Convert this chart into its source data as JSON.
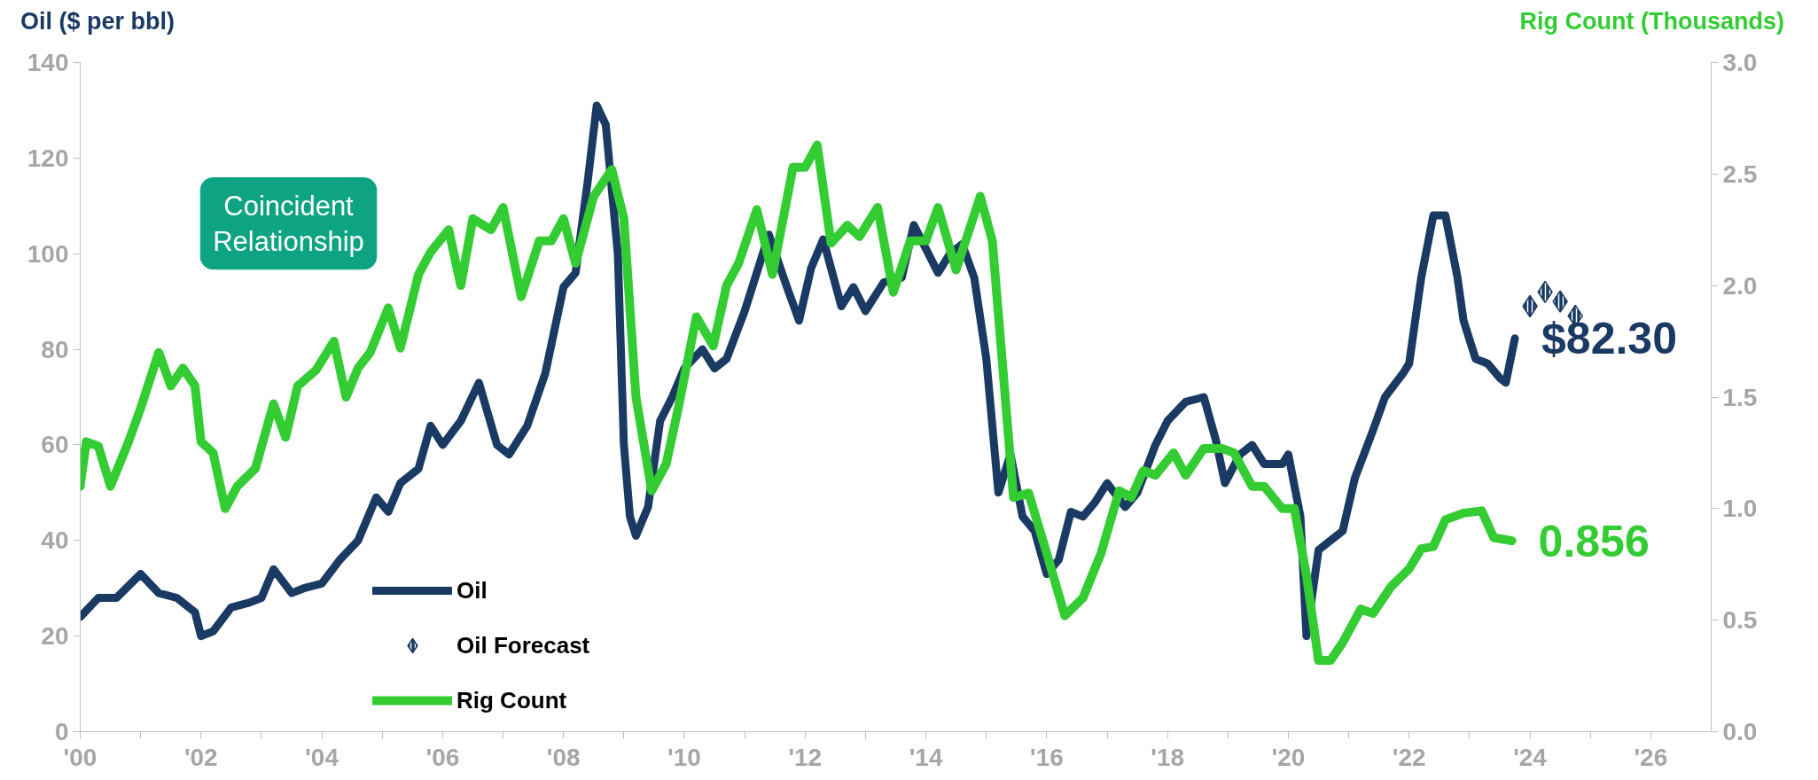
{
  "chart_data": {
    "type": "line",
    "xlabel": null,
    "ylabel": "Oil ($ per bbl)",
    "y2label": "Rig Count (Thousands)",
    "annotations": [
      "Coincident Relationship"
    ],
    "xlim": [
      2000,
      2027
    ],
    "xticks": [
      {
        "value": 2000,
        "label": "'00"
      },
      {
        "value": 2001,
        "label": null
      },
      {
        "value": 2002,
        "label": "'02"
      },
      {
        "value": 2003,
        "label": null
      },
      {
        "value": 2004,
        "label": "'04"
      },
      {
        "value": 2005,
        "label": null
      },
      {
        "value": 2006,
        "label": "'06"
      },
      {
        "value": 2007,
        "label": null
      },
      {
        "value": 2008,
        "label": "'08"
      },
      {
        "value": 2009,
        "label": null
      },
      {
        "value": 2010,
        "label": "'10"
      },
      {
        "value": 2011,
        "label": null
      },
      {
        "value": 2012,
        "label": "'12"
      },
      {
        "value": 2013,
        "label": null
      },
      {
        "value": 2014,
        "label": "'14"
      },
      {
        "value": 2015,
        "label": null
      },
      {
        "value": 2016,
        "label": "'16"
      },
      {
        "value": 2017,
        "label": null
      },
      {
        "value": 2018,
        "label": "'18"
      },
      {
        "value": 2019,
        "label": null
      },
      {
        "value": 2020,
        "label": "'20"
      },
      {
        "value": 2021,
        "label": null
      },
      {
        "value": 2022,
        "label": "'22"
      },
      {
        "value": 2023,
        "label": null
      },
      {
        "value": 2024,
        "label": "'24"
      },
      {
        "value": 2025,
        "label": null
      },
      {
        "value": 2026,
        "label": "'26"
      }
    ],
    "ylim": [
      0,
      140
    ],
    "yticks": [
      0,
      20,
      40,
      60,
      80,
      100,
      120,
      140
    ],
    "y2lim": [
      0,
      3
    ],
    "y2ticks": [
      {
        "value": 0,
        "label": "0.0"
      },
      {
        "value": 0.5,
        "label": "0.5"
      },
      {
        "value": 1,
        "label": "1.0"
      },
      {
        "value": 1.5,
        "label": "1.5"
      },
      {
        "value": 2,
        "label": "2.0"
      },
      {
        "value": 2.5,
        "label": "2.5"
      },
      {
        "value": 3,
        "label": "3.0"
      }
    ],
    "grid": false,
    "legend": "bottom left",
    "series": [
      {
        "name": "Oil",
        "color": "#1b3a63",
        "x": [
          2000.0,
          2000.3,
          2000.6,
          2001.0,
          2001.3,
          2001.6,
          2001.9,
          2002.0,
          2002.2,
          2002.5,
          2002.8,
          2003.0,
          2003.2,
          2003.5,
          2003.7,
          2004.0,
          2004.3,
          2004.6,
          2004.9,
          2005.1,
          2005.3,
          2005.6,
          2005.8,
          2006.0,
          2006.3,
          2006.6,
          2006.9,
          2007.1,
          2007.4,
          2007.7,
          2008.0,
          2008.2,
          2008.4,
          2008.55,
          2008.7,
          2008.9,
          2009.0,
          2009.1,
          2009.2,
          2009.4,
          2009.6,
          2009.8,
          2010.0,
          2010.3,
          2010.5,
          2010.7,
          2011.0,
          2011.2,
          2011.4,
          2011.7,
          2011.9,
          2012.1,
          2012.3,
          2012.6,
          2012.8,
          2013.0,
          2013.3,
          2013.6,
          2013.8,
          2014.0,
          2014.2,
          2014.4,
          2014.6,
          2014.8,
          2015.0,
          2015.2,
          2015.4,
          2015.6,
          2015.8,
          2016.0,
          2016.2,
          2016.4,
          2016.6,
          2016.8,
          2017.0,
          2017.3,
          2017.5,
          2017.8,
          2018.0,
          2018.3,
          2018.6,
          2018.8,
          2018.95,
          2019.2,
          2019.4,
          2019.6,
          2019.9,
          2020.0,
          2020.2,
          2020.3,
          2020.5,
          2020.7,
          2020.9,
          2021.1,
          2021.4,
          2021.6,
          2021.9,
          2022.0,
          2022.2,
          2022.4,
          2022.6,
          2022.8,
          2022.9,
          2023.1,
          2023.3,
          2023.5,
          2023.6,
          2023.75
        ],
        "values": [
          24,
          28,
          28,
          33,
          29,
          28,
          25,
          20,
          21,
          26,
          27,
          28,
          34,
          29,
          30,
          31,
          36,
          40,
          49,
          46,
          52,
          55,
          64,
          60,
          65,
          73,
          60,
          58,
          64,
          75,
          93,
          96,
          115,
          131,
          127,
          100,
          60,
          45,
          41,
          47,
          65,
          70,
          76,
          80,
          76,
          78,
          88,
          96,
          104,
          93,
          86,
          97,
          103,
          89,
          93,
          88,
          94,
          95,
          106,
          101,
          96,
          100,
          102,
          95,
          78,
          50,
          58,
          45,
          42,
          33,
          36,
          46,
          45,
          48,
          52,
          47,
          50,
          60,
          65,
          69,
          70,
          61,
          52,
          58,
          60,
          56,
          56,
          58,
          45,
          20,
          38,
          40,
          42,
          53,
          63,
          70,
          75,
          77,
          95,
          108,
          108,
          95,
          86,
          78,
          77,
          74,
          73,
          82.3
        ],
        "value_labels": [
          null,
          null,
          null,
          null,
          null,
          null,
          null,
          null,
          null,
          null,
          null,
          null,
          null,
          null,
          null,
          null,
          null,
          null,
          null,
          null,
          null,
          null,
          null,
          null,
          null,
          null,
          null,
          null,
          null,
          null,
          null,
          null,
          null,
          null,
          null,
          null,
          null,
          null,
          null,
          null,
          null,
          null,
          null,
          null,
          null,
          null,
          null,
          null,
          null,
          null,
          null,
          null,
          null,
          null,
          null,
          null,
          null,
          null,
          null,
          null,
          null,
          null,
          null,
          null,
          null,
          null,
          null,
          null,
          null,
          null,
          null,
          null,
          null,
          null,
          null,
          null,
          null,
          null,
          null,
          null,
          null,
          null,
          null,
          null,
          null,
          null,
          null,
          null,
          null,
          null,
          null,
          null,
          null,
          null,
          null,
          null,
          null,
          null,
          null,
          null,
          null,
          null,
          null,
          null,
          null,
          null,
          null,
          "$82.30"
        ]
      },
      {
        "name": "Oil Forecast",
        "type": "scatter",
        "marker": "diamond",
        "color": "#1b3a63",
        "x": [
          2024.0,
          2024.25,
          2024.5,
          2024.75
        ],
        "values": [
          89,
          92,
          90,
          87
        ]
      },
      {
        "name": "Rig Count",
        "axis": "y2",
        "color": "#33cc33",
        "x": [
          2000.0,
          2000.1,
          2000.3,
          2000.5,
          2000.8,
          2001.0,
          2001.3,
          2001.5,
          2001.7,
          2001.9,
          2002.0,
          2002.2,
          2002.4,
          2002.6,
          2002.9,
          2003.2,
          2003.4,
          2003.6,
          2003.9,
          2004.2,
          2004.4,
          2004.6,
          2004.8,
          2005.1,
          2005.3,
          2005.6,
          2005.8,
          2006.1,
          2006.3,
          2006.5,
          2006.8,
          2007.0,
          2007.3,
          2007.6,
          2007.8,
          2008.0,
          2008.2,
          2008.5,
          2008.8,
          2009.0,
          2009.2,
          2009.46,
          2009.7,
          2009.9,
          2010.2,
          2010.48,
          2010.7,
          2010.9,
          2011.2,
          2011.46,
          2011.8,
          2012.0,
          2012.2,
          2012.43,
          2012.7,
          2012.9,
          2013.2,
          2013.46,
          2013.74,
          2014.0,
          2014.2,
          2014.5,
          2014.9,
          2015.1,
          2015.45,
          2015.7,
          2016.0,
          2016.3,
          2016.6,
          2016.9,
          2017.2,
          2017.4,
          2017.6,
          2017.8,
          2018.1,
          2018.3,
          2018.6,
          2018.9,
          2019.1,
          2019.4,
          2019.6,
          2019.9,
          2020.1,
          2020.3,
          2020.5,
          2020.7,
          2020.9,
          2021.2,
          2021.4,
          2021.7,
          2022.0,
          2022.2,
          2022.4,
          2022.6,
          2022.9,
          2023.2,
          2023.4,
          2023.7
        ],
        "values": [
          1.1,
          1.3,
          1.28,
          1.1,
          1.3,
          1.45,
          1.7,
          1.55,
          1.63,
          1.55,
          1.3,
          1.25,
          1.0,
          1.1,
          1.18,
          1.47,
          1.32,
          1.55,
          1.62,
          1.75,
          1.5,
          1.63,
          1.7,
          1.9,
          1.72,
          2.05,
          2.15,
          2.25,
          2.0,
          2.3,
          2.25,
          2.35,
          1.95,
          2.2,
          2.2,
          2.3,
          2.1,
          2.4,
          2.52,
          2.3,
          1.5,
          1.08,
          1.2,
          1.45,
          1.86,
          1.73,
          2.0,
          2.1,
          2.34,
          2.05,
          2.53,
          2.53,
          2.63,
          2.19,
          2.27,
          2.22,
          2.35,
          1.97,
          2.2,
          2.2,
          2.35,
          2.07,
          2.4,
          2.2,
          1.05,
          1.07,
          0.8,
          0.52,
          0.6,
          0.8,
          1.08,
          1.05,
          1.17,
          1.15,
          1.25,
          1.15,
          1.27,
          1.27,
          1.25,
          1.1,
          1.1,
          1.0,
          1.0,
          0.7,
          0.32,
          0.32,
          0.4,
          0.55,
          0.53,
          0.65,
          0.73,
          0.82,
          0.83,
          0.95,
          0.98,
          0.99,
          0.87,
          0.856
        ],
        "value_labels": [
          null,
          null,
          null,
          null,
          null,
          null,
          null,
          null,
          null,
          null,
          null,
          null,
          null,
          null,
          null,
          null,
          null,
          null,
          null,
          null,
          null,
          null,
          null,
          null,
          null,
          null,
          null,
          null,
          null,
          null,
          null,
          null,
          null,
          null,
          null,
          null,
          null,
          null,
          null,
          null,
          null,
          null,
          null,
          null,
          null,
          null,
          null,
          null,
          null,
          null,
          null,
          null,
          null,
          null,
          null,
          null,
          null,
          null,
          null,
          null,
          null,
          null,
          null,
          null,
          null,
          null,
          null,
          null,
          null,
          null,
          null,
          null,
          null,
          null,
          null,
          null,
          null,
          null,
          null,
          null,
          null,
          null,
          null,
          null,
          null,
          null,
          null,
          null,
          null,
          null,
          null,
          null,
          null,
          null,
          null,
          null,
          null,
          "0.856"
        ]
      }
    ]
  }
}
